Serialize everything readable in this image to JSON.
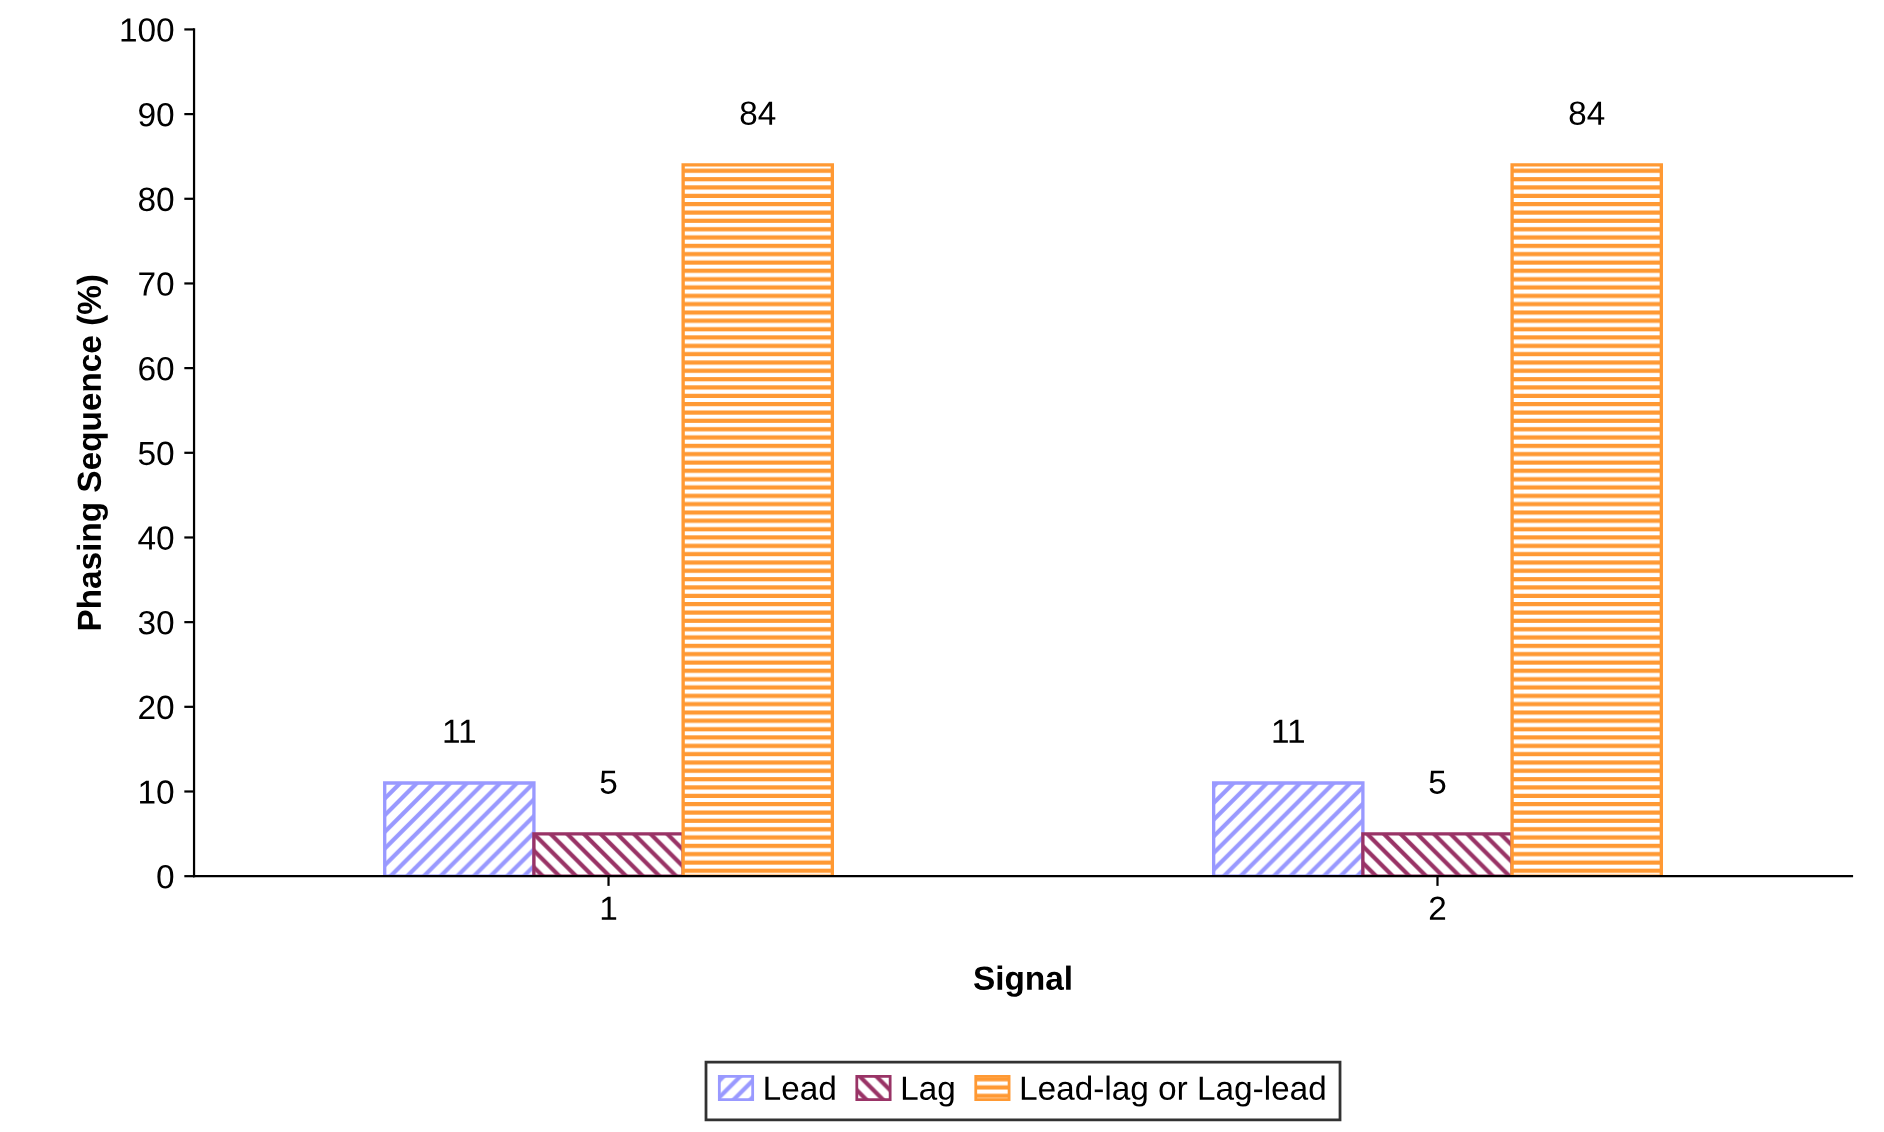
{
  "chart_data": {
    "type": "bar",
    "xlabel": "Signal",
    "ylabel": "Phasing Sequence (%)",
    "categories": [
      "1",
      "2"
    ],
    "series": [
      {
        "name": "Lead",
        "color": "#9999ff",
        "values": [
          11,
          11
        ]
      },
      {
        "name": "Lag",
        "color": "#993366",
        "values": [
          5,
          5
        ]
      },
      {
        "name": "Lead-lag or Lag-lead",
        "color": "#ff9933",
        "values": [
          84,
          84
        ]
      }
    ],
    "data_labels": true,
    "ylim": [
      0,
      100
    ],
    "yticks": [
      0,
      10,
      20,
      30,
      40,
      50,
      60,
      70,
      80,
      90,
      100
    ],
    "grid": false,
    "legend": "bottom"
  }
}
